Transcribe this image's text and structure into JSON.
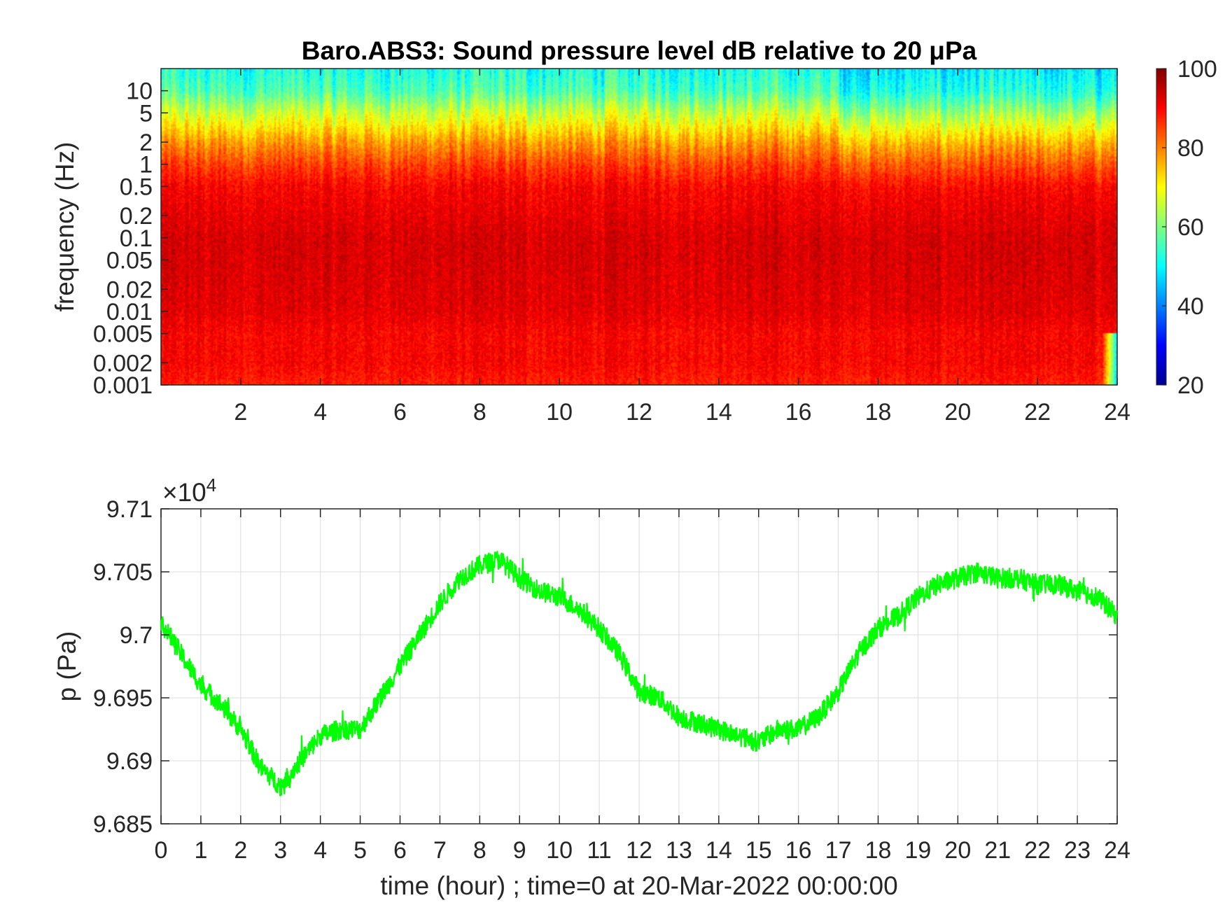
{
  "chart_data": [
    {
      "type": "heatmap",
      "title": "Baro.ABS3: Sound pressure level dB relative to 20 μPa",
      "xlabel": "",
      "ylabel": "frequency (Hz)",
      "x_ticks": [
        "2",
        "4",
        "6",
        "8",
        "10",
        "12",
        "14",
        "16",
        "18",
        "20",
        "22",
        "24"
      ],
      "x_tick_values": [
        2,
        4,
        6,
        8,
        10,
        12,
        14,
        16,
        18,
        20,
        22,
        24
      ],
      "xlim": [
        0,
        24
      ],
      "y_scale": "log",
      "ylim": [
        0.001,
        20
      ],
      "y_ticks": [
        "10",
        "5",
        "2",
        "1",
        "0.5",
        "0.2",
        "0.1",
        "0.05",
        "0.02",
        "0.01",
        "0.005",
        "0.002",
        "0.001"
      ],
      "y_tick_values": [
        10,
        5,
        2,
        1,
        0.5,
        0.2,
        0.1,
        0.05,
        0.02,
        0.01,
        0.005,
        0.002,
        0.001
      ],
      "colorbar": {
        "colormap": "jet",
        "range": [
          20,
          100
        ],
        "ticks": [
          "100",
          "80",
          "60",
          "40",
          "20"
        ],
        "tick_values": [
          100,
          80,
          60,
          40,
          20
        ]
      },
      "level_profile": {
        "description_free": true,
        "frequency_hz": [
          0.001,
          0.002,
          0.005,
          0.01,
          0.05,
          0.1,
          0.5,
          1,
          2,
          5,
          10,
          20
        ],
        "typical_db": [
          88,
          90,
          90,
          92,
          93,
          93,
          90,
          85,
          78,
          66,
          56,
          52
        ]
      }
    },
    {
      "type": "line",
      "title": "",
      "xlabel": "time (hour) ; time=0 at 20-Mar-2022 00:00:00",
      "ylabel": "p (Pa)",
      "xlim": [
        0,
        24
      ],
      "ylim": [
        96850,
        97100
      ],
      "y_multiplier": "×10",
      "y_multiplier_exp": "4",
      "grid": true,
      "x_ticks": [
        "0",
        "1",
        "2",
        "3",
        "4",
        "5",
        "6",
        "7",
        "8",
        "9",
        "10",
        "11",
        "12",
        "13",
        "14",
        "15",
        "16",
        "17",
        "18",
        "19",
        "20",
        "21",
        "22",
        "23",
        "24"
      ],
      "x_tick_values": [
        0,
        1,
        2,
        3,
        4,
        5,
        6,
        7,
        8,
        9,
        10,
        11,
        12,
        13,
        14,
        15,
        16,
        17,
        18,
        19,
        20,
        21,
        22,
        23,
        24
      ],
      "y_ticks": [
        "9.71",
        "9.705",
        "9.7",
        "9.695",
        "9.69",
        "9.685"
      ],
      "y_tick_values": [
        97100,
        97050,
        97000,
        96950,
        96900,
        96850
      ],
      "series": [
        {
          "color": "#00ff00",
          "x": [
            0,
            0.5,
            1,
            1.5,
            2,
            2.5,
            3,
            3.5,
            4,
            4.5,
            5,
            5.5,
            6,
            6.5,
            7,
            7.5,
            8,
            8.5,
            9,
            9.5,
            10,
            10.5,
            11,
            11.5,
            12,
            12.5,
            13,
            13.5,
            14,
            14.5,
            15,
            15.5,
            16,
            16.5,
            17,
            17.5,
            18,
            18.5,
            19,
            19.5,
            20,
            20.5,
            21,
            21.5,
            22,
            22.5,
            23,
            23.5,
            24
          ],
          "y": [
            97010,
            96985,
            96960,
            96945,
            96925,
            96895,
            96880,
            96900,
            96920,
            96925,
            96925,
            96950,
            96975,
            97000,
            97025,
            97045,
            97055,
            97060,
            97045,
            97035,
            97030,
            97020,
            97005,
            96985,
            96955,
            96950,
            96935,
            96930,
            96925,
            96920,
            96915,
            96925,
            96925,
            96935,
            96955,
            96985,
            97005,
            97015,
            97030,
            97040,
            97045,
            97050,
            97045,
            97045,
            97040,
            97040,
            97035,
            97030,
            97015
          ]
        }
      ]
    }
  ]
}
